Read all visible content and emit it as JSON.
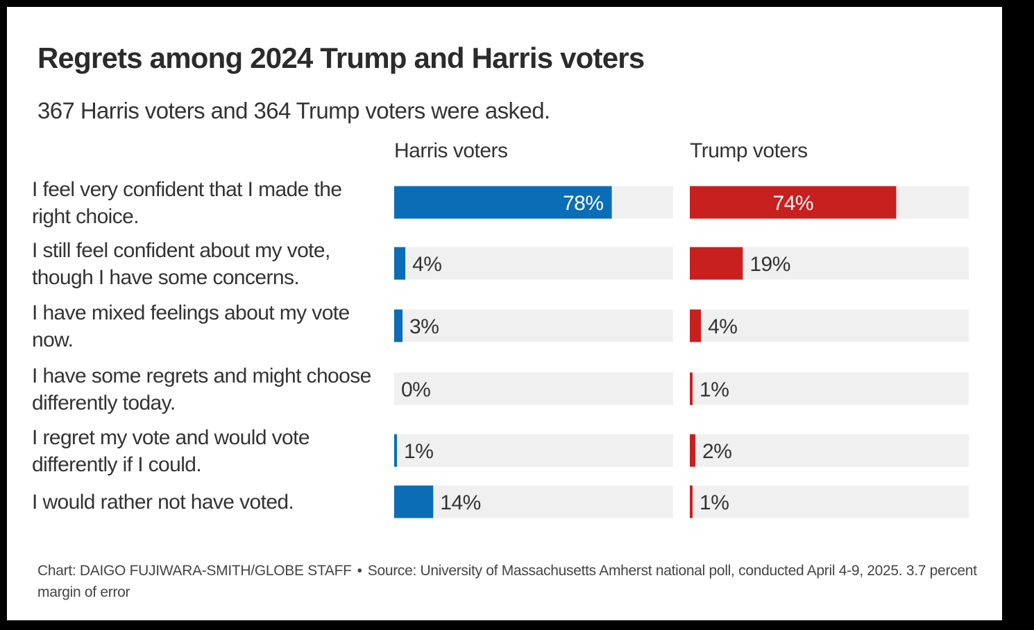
{
  "title": "Regrets among 2024 Trump and Harris voters",
  "subtitle": "367 Harris voters and 364 Trump voters were asked.",
  "footer": {
    "credit": "Chart: DAIGO FUJIWARA-SMITH/GLOBE STAFF",
    "separator": "•",
    "source": "Source: University of Massachusetts Amherst national poll, conducted April 4-9, 2025. 3.7 percent margin of error"
  },
  "colors": {
    "harris": "#0b6db6",
    "trump": "#c8201f",
    "track": "#f0f0f0",
    "text": "#333333"
  },
  "chart_data": {
    "type": "bar",
    "orientation": "horizontal",
    "xlim": [
      0,
      100
    ],
    "grid": false,
    "categories": [
      [
        "I feel very confident that I made the",
        "right choice."
      ],
      [
        "I still feel confident about my vote,",
        "though I have some concerns."
      ],
      [
        "I have mixed feelings about my vote",
        "now."
      ],
      [
        "I have some regrets and might choose",
        "differently today."
      ],
      [
        "I regret my vote and would vote",
        "differently if I could."
      ],
      [
        "I would rather not have voted."
      ]
    ],
    "series": [
      {
        "name": "Harris voters",
        "color": "#0b6db6",
        "values": [
          78,
          4,
          3,
          0,
          1,
          14
        ],
        "labels": [
          "78%",
          "4%",
          "3%",
          "0%",
          "1%",
          "14%"
        ]
      },
      {
        "name": "Trump voters",
        "color": "#c8201f",
        "values": [
          74,
          19,
          4,
          1,
          2,
          1
        ],
        "labels": [
          "74%",
          "19%",
          "4%",
          "1%",
          "2%",
          "1%"
        ]
      }
    ]
  }
}
